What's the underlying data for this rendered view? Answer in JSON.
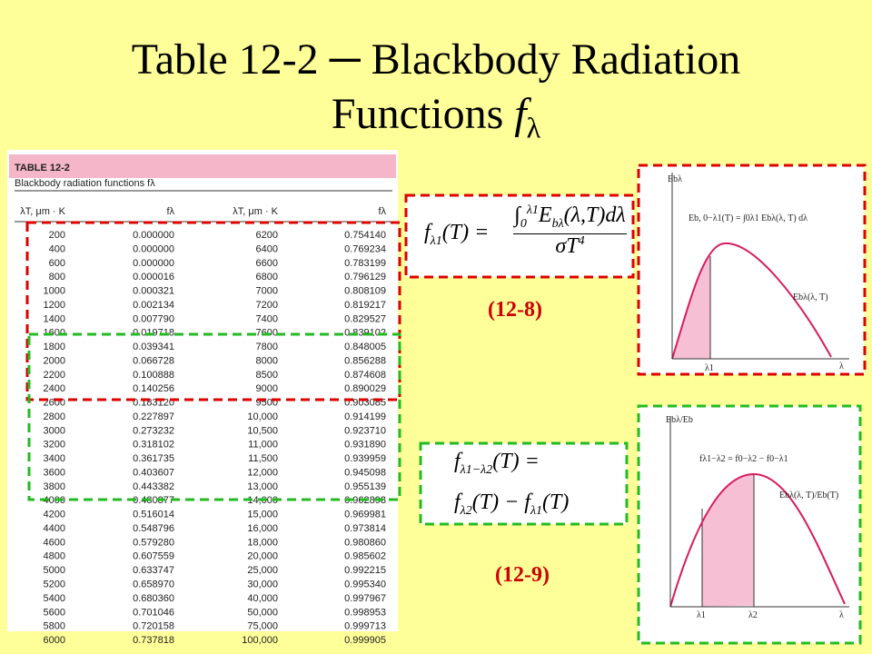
{
  "title": {
    "text_line1": "Table 12-2 ─ Blackbody Radiation",
    "text_line2": "Functions",
    "symbol": "f",
    "symbol_sub": "λ"
  },
  "table": {
    "name": "TABLE 12-2",
    "caption": "Blackbody radiation functions fλ",
    "headers": [
      "λT, μm · K",
      "fλ",
      "λT, μm · K",
      "fλ"
    ],
    "rows": [
      [
        "200",
        "0.000000",
        "6200",
        "0.754140"
      ],
      [
        "400",
        "0.000000",
        "6400",
        "0.769234"
      ],
      [
        "600",
        "0.000000",
        "6600",
        "0.783199"
      ],
      [
        "800",
        "0.000016",
        "6800",
        "0.796129"
      ],
      [
        "1000",
        "0.000321",
        "7000",
        "0.808109"
      ],
      [
        "1200",
        "0.002134",
        "7200",
        "0.819217"
      ],
      [
        "1400",
        "0.007790",
        "7400",
        "0.829527"
      ],
      [
        "1600",
        "0.019718",
        "7600",
        "0.839102"
      ],
      [
        "1800",
        "0.039341",
        "7800",
        "0.848005"
      ],
      [
        "2000",
        "0.066728",
        "8000",
        "0.856288"
      ],
      [
        "2200",
        "0.100888",
        "8500",
        "0.874608"
      ],
      [
        "2400",
        "0.140256",
        "9000",
        "0.890029"
      ],
      [
        "2600",
        "0.183120",
        "9500",
        "0.903085"
      ],
      [
        "2800",
        "0.227897",
        "10,000",
        "0.914199"
      ],
      [
        "3000",
        "0.273232",
        "10,500",
        "0.923710"
      ],
      [
        "3200",
        "0.318102",
        "11,000",
        "0.931890"
      ],
      [
        "3400",
        "0.361735",
        "11,500",
        "0.939959"
      ],
      [
        "3600",
        "0.403607",
        "12,000",
        "0.945098"
      ],
      [
        "3800",
        "0.443382",
        "13,000",
        "0.955139"
      ],
      [
        "4000",
        "0.480877",
        "14,000",
        "0.962898"
      ],
      [
        "4200",
        "0.516014",
        "15,000",
        "0.969981"
      ],
      [
        "4400",
        "0.548796",
        "16,000",
        "0.973814"
      ],
      [
        "4600",
        "0.579280",
        "18,000",
        "0.980860"
      ],
      [
        "4800",
        "0.607559",
        "20,000",
        "0.985602"
      ],
      [
        "5000",
        "0.633747",
        "25,000",
        "0.992215"
      ],
      [
        "5200",
        "0.658970",
        "30,000",
        "0.995340"
      ],
      [
        "5400",
        "0.680360",
        "40,000",
        "0.997967"
      ],
      [
        "5600",
        "0.701046",
        "50,000",
        "0.998953"
      ],
      [
        "5800",
        "0.720158",
        "75,000",
        "0.999713"
      ],
      [
        "6000",
        "0.737818",
        "100,000",
        "0.999905"
      ]
    ]
  },
  "equation_1": {
    "lhs": "f",
    "lhs_sub": "λ1",
    "lhs_rest": "(T) =",
    "integral": "∫",
    "lower": "0",
    "upper": "λ1",
    "integrand": "E",
    "integrand_sub": "bλ",
    "integrand_rest": "(λ,T)dλ",
    "denominator": "σT",
    "power": "4",
    "label": "(12-8)"
  },
  "equation_2": {
    "lhs": "f",
    "lhs_sub": "λ1−λ2",
    "lhs_rest": "(T) =",
    "term1": "f",
    "term1_sub": "λ2",
    "middle": "(T) − f",
    "term2_sub": "λ1",
    "end": "(T)",
    "label": "(12-9)"
  },
  "graph_1": {
    "y_label": "Ebλ",
    "annotation": "Eb, 0−λ1(T) = ∫0λ1 Ebλ(λ, T) dλ",
    "curve_label": "Ebλ(λ, T)",
    "x_mark": "λ1",
    "x_label": "λ"
  },
  "graph_2": {
    "y_label": "Ebλ/Eb",
    "annotation": "fλ1−λ2 = f0−λ2 − f0−λ1",
    "curve_label": "Ebλ(λ, T)/Eb(T)",
    "x_mark_1": "λ1",
    "x_mark_2": "λ2",
    "x_label": "λ"
  }
}
